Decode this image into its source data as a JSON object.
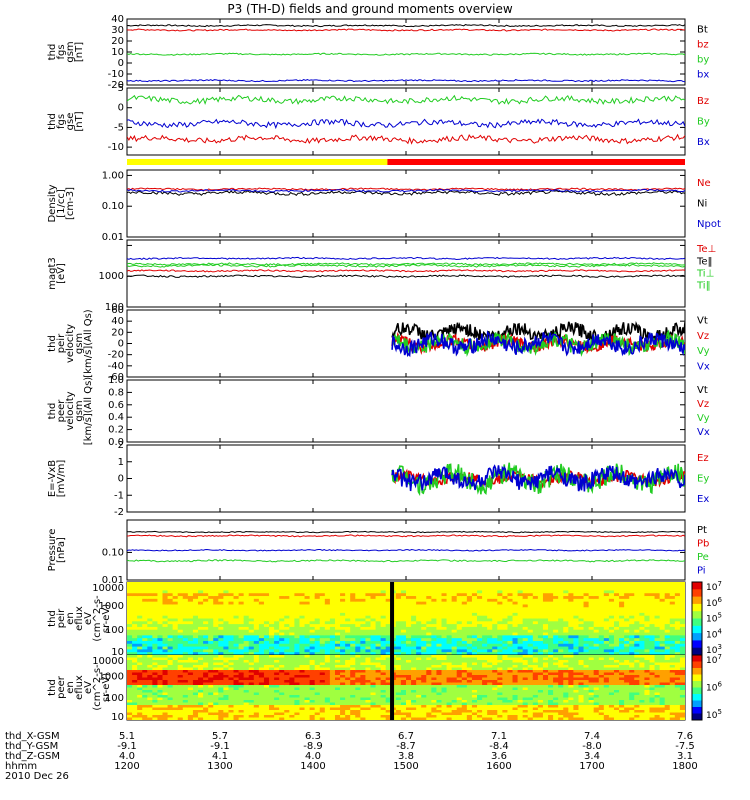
{
  "title": "P3 (TH-D) fields and ground moments overview",
  "colors": {
    "black": "#000000",
    "red": "#e00000",
    "green": "#22cc22",
    "blue": "#0000d0",
    "yellow": "#ffff00",
    "barred": "#ff0000"
  },
  "chart_data": {
    "type": "line",
    "x_range": [
      1200,
      1800
    ],
    "x_ticks": [
      1200,
      1300,
      1400,
      1500,
      1600,
      1700,
      1800
    ],
    "panels": [
      {
        "id": "fgs-gsm",
        "ylabel": [
          "thd",
          "fgs",
          "gsm",
          "[nT]"
        ],
        "ylim": [
          -20,
          40
        ],
        "ticks": [
          40,
          30,
          20,
          10,
          0,
          -10,
          -20
        ],
        "series": [
          {
            "name": "Bt",
            "color": "black",
            "base": 34,
            "noise": 0.6
          },
          {
            "name": "bz",
            "color": "red",
            "base": 30,
            "noise": 0.6
          },
          {
            "name": "by",
            "color": "green",
            "base": 8,
            "noise": 0.6
          },
          {
            "name": "bx",
            "color": "blue",
            "base": -16,
            "noise": 0.6
          }
        ]
      },
      {
        "id": "fgs-gse",
        "ylabel": [
          "thd",
          "fgs",
          "gse",
          "[nT]"
        ],
        "ylim": [
          -12,
          5
        ],
        "ticks": [
          5,
          0,
          -5,
          -10
        ],
        "series": [
          {
            "name": "Bz",
            "color": "red",
            "base": -8,
            "noise": 0.7
          },
          {
            "name": "By",
            "color": "green",
            "base": 2,
            "noise": 0.7
          },
          {
            "name": "Bx",
            "color": "blue",
            "base": -4,
            "noise": 0.7
          }
        ]
      },
      {
        "id": "density",
        "ylabel": [
          "Density",
          "[1/cc]",
          "[cm-3]"
        ],
        "log": true,
        "ylim": [
          0.01,
          1.5
        ],
        "ticks": [
          1.0,
          0.1,
          0.01
        ],
        "tick_labels": [
          "1.00",
          "0.10",
          "0.01"
        ],
        "series": [
          {
            "name": "Ne",
            "color": "red",
            "base": 0.36,
            "noise": 0.02
          },
          {
            "name": "Ni",
            "color": "black",
            "base": 0.27,
            "noise": 0.03
          },
          {
            "name": "Npot",
            "color": "blue",
            "base": 0.32,
            "noise": 0.02
          }
        ]
      },
      {
        "id": "temperature",
        "ylabel": [
          "magt3",
          "[eV]"
        ],
        "log": true,
        "ylim": [
          100,
          15000
        ],
        "ticks": [
          10000,
          1000,
          100
        ],
        "tick_labels": [
          "",
          "1000",
          "100"
        ],
        "series": [
          {
            "name": "Te⊥",
            "color": "red",
            "base": 1500,
            "noise": 80
          },
          {
            "name": "Te‖",
            "color": "black",
            "base": 1000,
            "noise": 60
          },
          {
            "name": "Ti⊥",
            "color": "green",
            "base": 2500,
            "noise": 150
          },
          {
            "name": "Ti‖",
            "color": "green",
            "base": 2200,
            "noise": 150
          },
          {
            "name": "",
            "color": "blue",
            "base": 3800,
            "noise": 200
          }
        ]
      },
      {
        "id": "peir-velocity",
        "ylabel": [
          "thd",
          "peir",
          "velocity",
          "gsm",
          "[km/s](All Qs)"
        ],
        "ylim": [
          -60,
          60
        ],
        "ticks": [
          60,
          40,
          20,
          0,
          -20,
          -40,
          -60
        ],
        "start": 1485,
        "series": [
          {
            "name": "Vt",
            "color": "black",
            "base": 20,
            "noise": 12
          },
          {
            "name": "Vz",
            "color": "red",
            "base": 0,
            "noise": 10
          },
          {
            "name": "Vy",
            "color": "green",
            "base": 0,
            "noise": 14
          },
          {
            "name": "Vx",
            "color": "blue",
            "base": 0,
            "noise": 14
          }
        ]
      },
      {
        "id": "peer-velocity",
        "ylabel": [
          "thd",
          "peer",
          "velocity",
          "gsm",
          "[km/s](All Qs)"
        ],
        "ylim": [
          0,
          1
        ],
        "ticks": [
          1.0,
          0.8,
          0.6,
          0.4,
          0.2,
          0.0
        ],
        "tick_labels": [
          "1.0",
          "0.8",
          "0.6",
          "0.4",
          "0.2",
          "0.0"
        ],
        "series": [
          {
            "name": "Vt",
            "color": "black"
          },
          {
            "name": "Vz",
            "color": "red"
          },
          {
            "name": "Vy",
            "color": "green"
          },
          {
            "name": "Vx",
            "color": "blue"
          }
        ]
      },
      {
        "id": "efield",
        "ylabel": [
          "E=-VxB",
          "[mV/m]"
        ],
        "ylim": [
          -2,
          2
        ],
        "ticks": [
          2,
          1,
          0,
          -1,
          -2
        ],
        "start": 1485,
        "series": [
          {
            "name": "Ez",
            "color": "red",
            "base": 0,
            "noise": 0.3
          },
          {
            "name": "Ey",
            "color": "green",
            "base": 0,
            "noise": 0.6
          },
          {
            "name": "Ex",
            "color": "blue",
            "base": 0,
            "noise": 0.5
          }
        ]
      },
      {
        "id": "pressure",
        "ylabel": [
          "Pressure",
          "[nPa]"
        ],
        "log": true,
        "ylim": [
          0.01,
          1.5
        ],
        "ticks": [
          0.1,
          0.01
        ],
        "tick_labels": [
          "0.10",
          "0.01"
        ],
        "series": [
          {
            "name": "Pt",
            "color": "black",
            "base": 0.55,
            "noise": 0.02
          },
          {
            "name": "Pb",
            "color": "red",
            "base": 0.4,
            "noise": 0.02
          },
          {
            "name": "Pe",
            "color": "green",
            "base": 0.05,
            "noise": 0.003
          },
          {
            "name": "Pi",
            "color": "blue",
            "base": 0.12,
            "noise": 0.005
          }
        ]
      },
      {
        "id": "peir-spec",
        "type": "heatmap",
        "ylabel": [
          "thd",
          "peir",
          "en",
          "eflux",
          "eV",
          "(cm^2-s-",
          "sr-eV)"
        ],
        "ticks": [
          "10000",
          "1000",
          "100",
          "10"
        ],
        "colorbar": [
          "10^7",
          "10^6",
          "10^5",
          "10^4",
          "10^3"
        ]
      },
      {
        "id": "peer-spec",
        "type": "heatmap",
        "ylabel": [
          "thd",
          "peer",
          "en",
          "eflux",
          "eV",
          "(cm^2-s-",
          "sr-eV)"
        ],
        "ticks": [
          "10000",
          "1000",
          "100",
          "10"
        ],
        "colorbar": [
          "10^7",
          "10^6",
          "10^5"
        ]
      }
    ],
    "ephemeris": {
      "labels": [
        "thd_X-GSM",
        "thd_Y-GSM",
        "thd_Z-GSM",
        "hhmm",
        "2010 Dec 26"
      ],
      "x_gsm": [
        "5.1",
        "5.7",
        "6.3",
        "6.7",
        "7.1",
        "7.4",
        "7.6"
      ],
      "y_gsm": [
        "-9.1",
        "-9.1",
        "-8.9",
        "-8.7",
        "-8.4",
        "-8.0",
        "-7.5"
      ],
      "z_gsm": [
        "4.0",
        "4.1",
        "4.0",
        "3.8",
        "3.6",
        "3.4",
        "3.1"
      ],
      "hhmm": [
        "1200",
        "1300",
        "1400",
        "1500",
        "1600",
        "1700",
        "1800"
      ]
    }
  }
}
